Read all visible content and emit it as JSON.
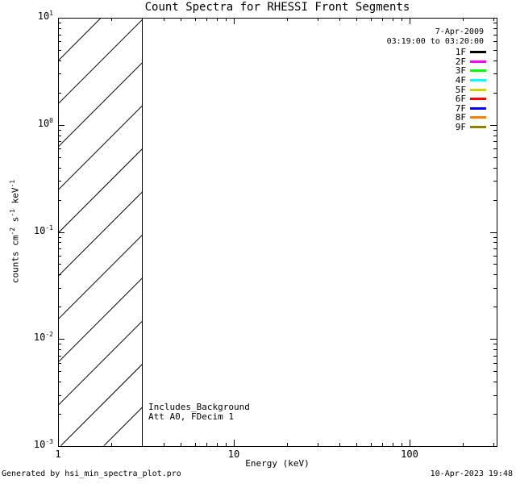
{
  "title": "Count Spectra for RHESSI Front Segments",
  "footer": {
    "generator": "Generated by hsi_min_spectra_plot.pro",
    "timestamp": "10-Apr-2023 19:48"
  },
  "colors": {
    "axis": "#000000",
    "background": "#FFFFFF"
  },
  "chart_data": {
    "type": "line",
    "title": "Count Spectra for RHESSI Front Segments",
    "xlabel": "Energy (keV)",
    "ylabel": "counts cm^-2 s^-1 keV^-1",
    "ylabel_parts": [
      {
        "t": "counts cm"
      },
      {
        "t": "-2",
        "sup": true
      },
      {
        "t": " s"
      },
      {
        "t": "-1",
        "sup": true
      },
      {
        "t": " keV"
      },
      {
        "t": "-1",
        "sup": true
      }
    ],
    "xscale": "log",
    "yscale": "log",
    "xlim": [
      1,
      316
    ],
    "ylim": [
      0.001,
      10
    ],
    "x_major_ticks": [
      {
        "value": 1,
        "label": "1"
      },
      {
        "value": 10,
        "label": "10"
      },
      {
        "value": 100,
        "label": "100"
      }
    ],
    "y_major_ticks": [
      {
        "value": 10,
        "base": "10",
        "exp": "1"
      },
      {
        "value": 1,
        "base": "10",
        "exp": "0"
      },
      {
        "value": 0.1,
        "base": "10",
        "exp": "-1"
      },
      {
        "value": 0.01,
        "base": "10",
        "exp": "-2"
      },
      {
        "value": 0.001,
        "base": "10",
        "exp": "-3"
      }
    ],
    "grid": false,
    "series": [],
    "hatch_region": {
      "x_start": 1,
      "x_end": 3,
      "style": "diagonal-hatch"
    },
    "legend": {
      "position": "top-right",
      "date": "7-Apr-2009",
      "time_range": "03:19:00 to 03:20:00",
      "entries": [
        {
          "label": "1F",
          "color": "#000000"
        },
        {
          "label": "2F",
          "color": "#FF00FF"
        },
        {
          "label": "3F",
          "color": "#00FF00"
        },
        {
          "label": "4F",
          "color": "#00FFFF"
        },
        {
          "label": "5F",
          "color": "#D2D200"
        },
        {
          "label": "6F",
          "color": "#FF0000"
        },
        {
          "label": "7F",
          "color": "#0000FF"
        },
        {
          "label": "8F",
          "color": "#FF8000"
        },
        {
          "label": "9F",
          "color": "#8F8000"
        }
      ]
    },
    "annotations": [
      "Includes_Background",
      "Att A0, FDecim 1"
    ]
  }
}
